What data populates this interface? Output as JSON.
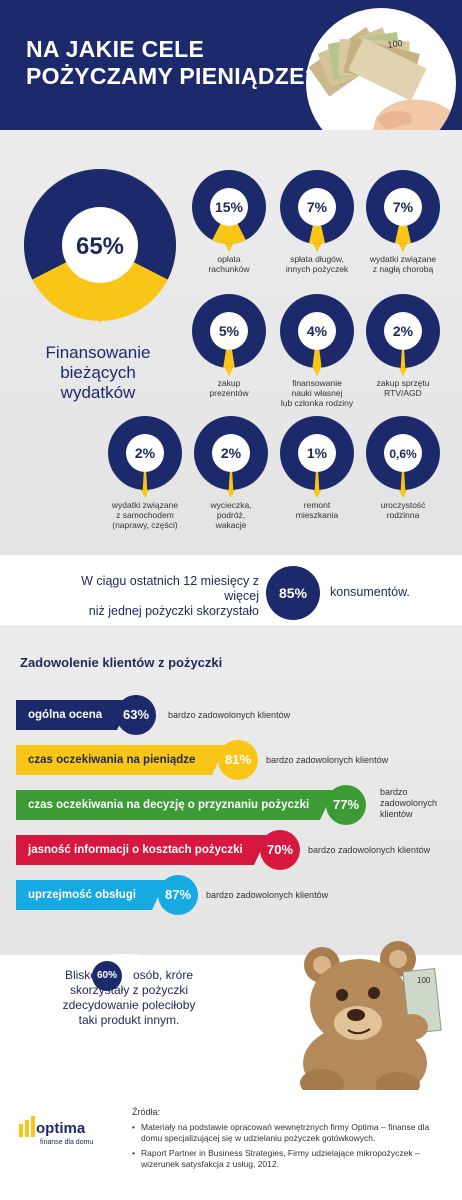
{
  "header": {
    "title_line1": "NA JAKIE CELE",
    "title_line2": "POŻYCZAMY PIENIĄDZE?"
  },
  "big_stat": {
    "value": "65%",
    "caption_line1": "Finansowanie",
    "caption_line2": "bieżących",
    "caption_line3": "wydatków",
    "fraction": 0.65
  },
  "small_stats": [
    {
      "value": "15%",
      "label_line1": "opłata",
      "label_line2": "rachunków",
      "label_line3": "",
      "fraction": 0.15
    },
    {
      "value": "7%",
      "label_line1": "spłata długów,",
      "label_line2": "innych pożyczek",
      "label_line3": "",
      "fraction": 0.07
    },
    {
      "value": "7%",
      "label_line1": "wydatki związane",
      "label_line2": "z nagłą chorobą",
      "label_line3": "",
      "fraction": 0.07
    },
    {
      "value": "5%",
      "label_line1": "zakup",
      "label_line2": "prezentów",
      "label_line3": "",
      "fraction": 0.05
    },
    {
      "value": "4%",
      "label_line1": "finansowanie",
      "label_line2": "nauki własnej",
      "label_line3": "lub członka rodziny",
      "fraction": 0.04
    },
    {
      "value": "2%",
      "label_line1": "zakup sprzętu",
      "label_line2": "RTV/AGD",
      "label_line3": "",
      "fraction": 0.02
    },
    {
      "value": "2%",
      "label_line1": "wydatki związane",
      "label_line2": "z samochodem",
      "label_line3": "(naprawy, części)",
      "fraction": 0.02
    },
    {
      "value": "2%",
      "label_line1": "wycieczka,",
      "label_line2": "podróż,",
      "label_line3": "wakacje",
      "fraction": 0.02
    },
    {
      "value": "1%",
      "label_line1": "remont",
      "label_line2": "mieszkania",
      "label_line3": "",
      "fraction": 0.01
    },
    {
      "value": "0,6%",
      "label_line1": "uroczystość",
      "label_line2": "rodzinna",
      "label_line3": "",
      "fraction": 0.006
    }
  ],
  "strip": {
    "text_line1": "W ciągu ostatnich 12 miesięcy z więcej",
    "text_line2": "niż jednej pożyczki skorzystało",
    "value": "85%",
    "text_after": "konsumentów."
  },
  "satisfaction": {
    "title": "Zadowolenie klientów z pożyczki",
    "items": [
      {
        "label": "ogólna ocena",
        "value": "63%",
        "desc": "bardzo zadowolonych klientów",
        "color": "#1c2a6b"
      },
      {
        "label": "czas oczekiwania na pieniądze",
        "value": "81%",
        "desc": "bardzo zadowolonych klientów",
        "color": "#f9c516"
      },
      {
        "label": "czas oczekiwania na decyzję o przyznaniu pożyczki",
        "value": "77%",
        "desc_line1": "bardzo",
        "desc_line2": "zadowolonych",
        "desc_line3": "klientów",
        "color": "#3d9b35"
      },
      {
        "label": "jasność informacji o kosztach pożyczki",
        "value": "70%",
        "desc": "bardzo zadowolonych klientów",
        "color": "#d6173f"
      },
      {
        "label": "uprzejmość obsługi",
        "value": "87%",
        "desc": "bardzo zadowolonych klientów",
        "color": "#17a9e1"
      }
    ]
  },
  "bubble": {
    "pre": "Blisko",
    "value": "60%",
    "post": "osób, króre",
    "line2": "skorzystały z pożyczki",
    "line3": "zdecydowanie poleciłoby",
    "line4": "taki produkt innym."
  },
  "banknote": {
    "denomination": "100"
  },
  "sources": {
    "title": "Źródła:",
    "items": [
      "Materiały na podstawie opracowań wewnętrznych firmy Optima – finanse dla domu specjalizującej się w udzielaniu pożyczek gotówkowych.",
      "Raport Partner in Business Strategies, Firmy udzielające mikropożyczek – wizerunek satysfakcja z usług, 2012."
    ]
  },
  "logo": {
    "name": "optima",
    "tagline": "finanse dla domu"
  },
  "colors": {
    "navy": "#1c2a6b",
    "yellow": "#f9c516",
    "green": "#3d9b35",
    "red": "#d6173f",
    "blue": "#17a9e1"
  }
}
